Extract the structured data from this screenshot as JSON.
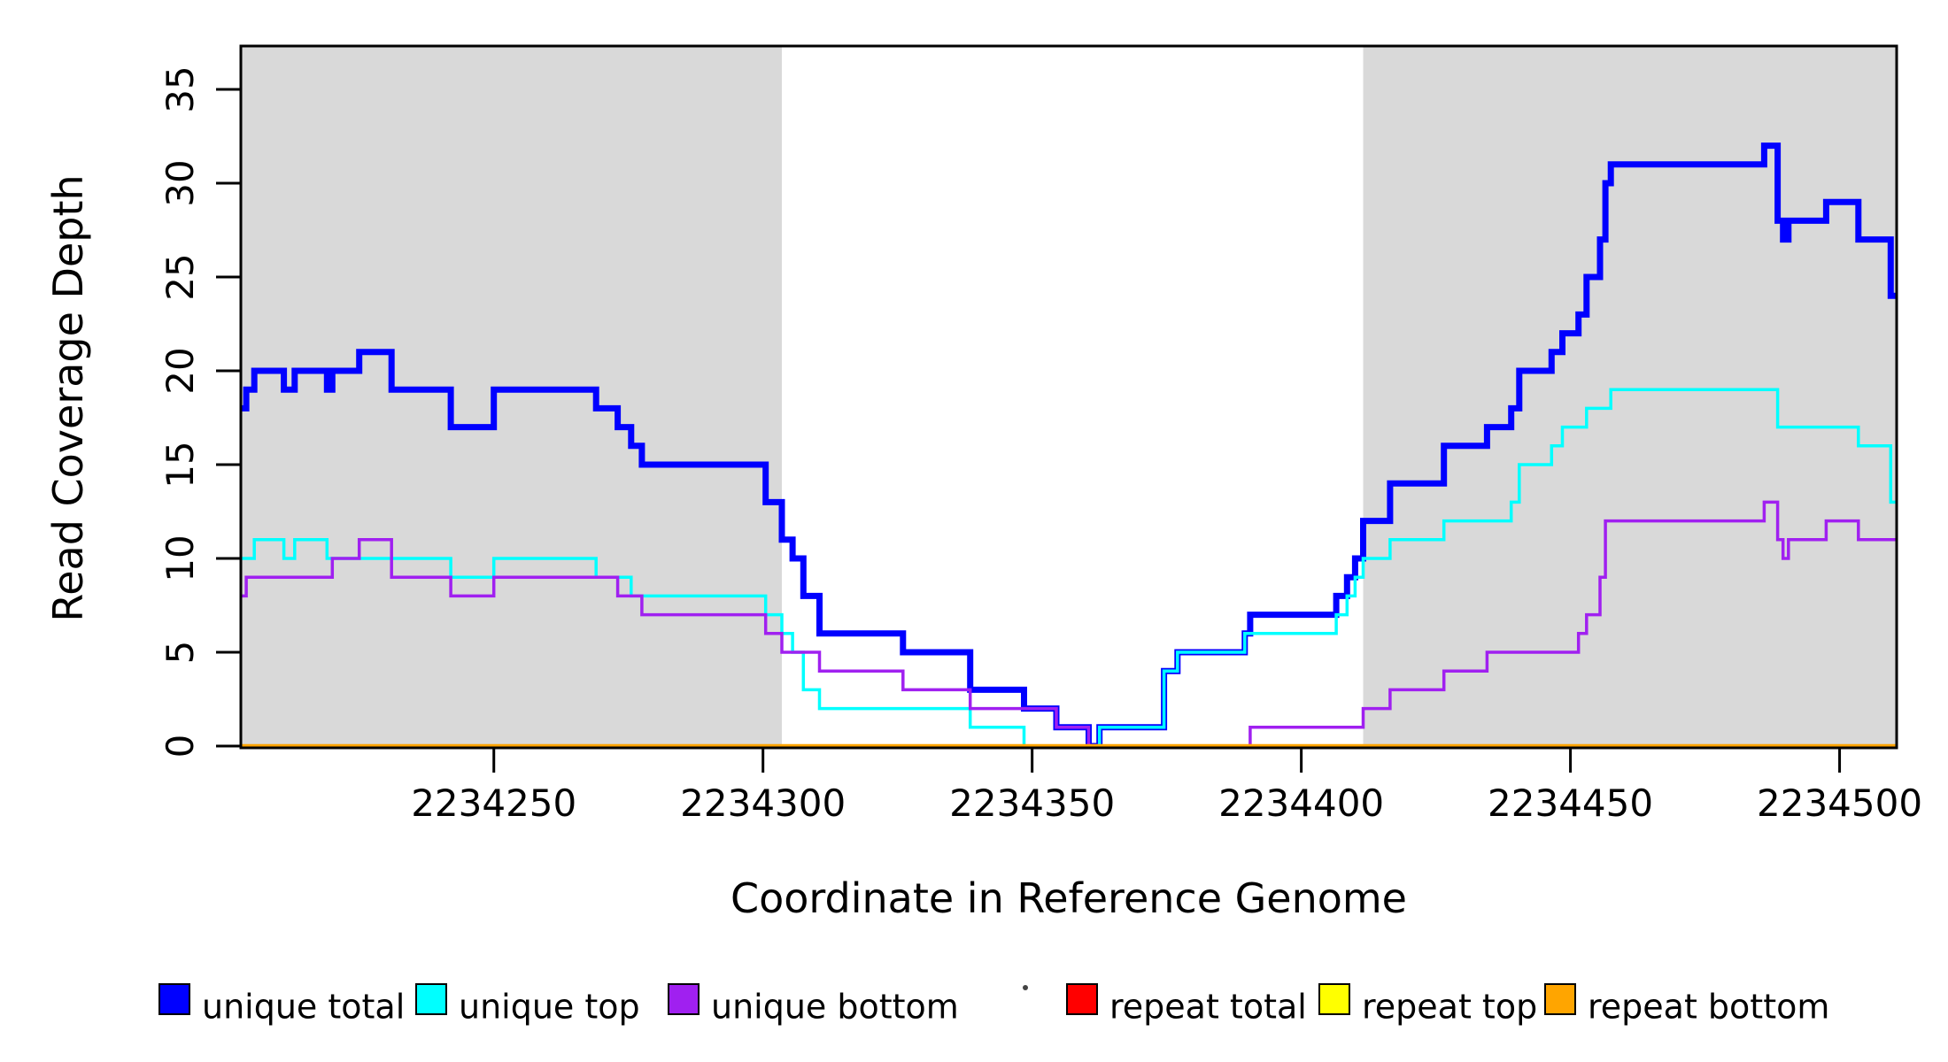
{
  "figure": {
    "x_axis_title": "Coordinate in Reference Genome",
    "y_axis_title": "Read Coverage Depth"
  },
  "colors": {
    "shade": "#D9D9D9",
    "frame": "#000000",
    "unique_total": "#0000FF",
    "unique_top": "#00FFFF",
    "unique_bottom": "#A020F0",
    "repeat_total": "#FF0000",
    "repeat_top": "#FFFF00",
    "repeat_bottom": "#FFA500"
  },
  "chart_data": {
    "type": "line",
    "step": true,
    "title": "",
    "xlabel": "Coordinate in Reference Genome",
    "ylabel": "Read Coverage Depth",
    "xlim": [
      2234203,
      2234510.6
    ],
    "ylim": [
      0,
      37.3
    ],
    "x_ticks": [
      2234250,
      2234300,
      2234350,
      2234400,
      2234450,
      2234500
    ],
    "y_ticks": [
      0,
      5,
      10,
      15,
      20,
      25,
      30,
      35
    ],
    "grid": false,
    "legend_position": "bottom",
    "shaded_regions": [
      {
        "from": 2234203,
        "to": 2234303.5
      },
      {
        "from": 2234411.5,
        "to": 2234510.6
      }
    ],
    "series": [
      {
        "name": "unique total",
        "color": "#0000FF",
        "width": 7,
        "steps": [
          [
            2234203,
            18
          ],
          [
            2234204,
            19
          ],
          [
            2234205.5,
            20
          ],
          [
            2234211,
            19
          ],
          [
            2234213,
            20
          ],
          [
            2234219,
            19
          ],
          [
            2234220,
            20
          ],
          [
            2234225,
            21
          ],
          [
            2234231,
            19
          ],
          [
            2234242,
            17
          ],
          [
            2234250,
            19
          ],
          [
            2234269,
            18
          ],
          [
            2234273,
            17
          ],
          [
            2234275.5,
            16
          ],
          [
            2234277.5,
            15
          ],
          [
            2234300.5,
            13
          ],
          [
            2234303.5,
            11
          ],
          [
            2234305.5,
            10
          ],
          [
            2234307.5,
            8
          ],
          [
            2234310.5,
            6
          ],
          [
            2234326,
            5
          ],
          [
            2234338.5,
            3
          ],
          [
            2234348.5,
            2
          ],
          [
            2234354.5,
            1
          ],
          [
            2234360.5,
            0
          ],
          [
            2234362.5,
            1
          ],
          [
            2234374.5,
            4
          ],
          [
            2234377,
            5
          ],
          [
            2234389.5,
            6
          ],
          [
            2234390.5,
            7
          ],
          [
            2234406.5,
            8
          ],
          [
            2234408.5,
            9
          ],
          [
            2234410,
            10
          ],
          [
            2234411.5,
            12
          ],
          [
            2234416.5,
            14
          ],
          [
            2234426.5,
            16
          ],
          [
            2234434.5,
            17
          ],
          [
            2234439,
            18
          ],
          [
            2234440.5,
            20
          ],
          [
            2234446.5,
            21
          ],
          [
            2234448.5,
            22
          ],
          [
            2234451.5,
            23
          ],
          [
            2234453,
            25
          ],
          [
            2234455.5,
            27
          ],
          [
            2234456.5,
            30
          ],
          [
            2234457.5,
            31
          ],
          [
            2234486,
            32
          ],
          [
            2234488.5,
            28
          ],
          [
            2234489.5,
            27
          ],
          [
            2234490.5,
            28
          ],
          [
            2234497.5,
            29
          ],
          [
            2234503.5,
            27
          ],
          [
            2234509.5,
            24
          ]
        ]
      },
      {
        "name": "unique top",
        "color": "#00FFFF",
        "width": 3.5,
        "steps": [
          [
            2234203,
            10
          ],
          [
            2234205.5,
            11
          ],
          [
            2234211,
            10
          ],
          [
            2234213,
            11
          ],
          [
            2234219,
            10
          ],
          [
            2234242,
            9
          ],
          [
            2234250,
            10
          ],
          [
            2234269,
            9
          ],
          [
            2234275.5,
            8
          ],
          [
            2234300.5,
            7
          ],
          [
            2234303.5,
            6
          ],
          [
            2234305.5,
            5
          ],
          [
            2234307.5,
            3
          ],
          [
            2234310.5,
            2
          ],
          [
            2234338.5,
            1
          ],
          [
            2234348.5,
            0
          ],
          [
            2234362.5,
            1
          ],
          [
            2234374.5,
            4
          ],
          [
            2234377,
            5
          ],
          [
            2234389.5,
            6
          ],
          [
            2234406.5,
            7
          ],
          [
            2234408.5,
            8
          ],
          [
            2234410,
            9
          ],
          [
            2234411.5,
            10
          ],
          [
            2234416.5,
            11
          ],
          [
            2234426.5,
            12
          ],
          [
            2234439,
            13
          ],
          [
            2234440.5,
            15
          ],
          [
            2234446.5,
            16
          ],
          [
            2234448.5,
            17
          ],
          [
            2234453,
            18
          ],
          [
            2234457.5,
            19
          ],
          [
            2234488.5,
            17
          ],
          [
            2234503.5,
            16
          ],
          [
            2234509.5,
            13
          ]
        ]
      },
      {
        "name": "unique bottom",
        "color": "#A020F0",
        "width": 3.5,
        "steps": [
          [
            2234203,
            8
          ],
          [
            2234204,
            9
          ],
          [
            2234220,
            10
          ],
          [
            2234225,
            11
          ],
          [
            2234231,
            9
          ],
          [
            2234242,
            8
          ],
          [
            2234250,
            9
          ],
          [
            2234273,
            8
          ],
          [
            2234277.5,
            7
          ],
          [
            2234300.5,
            6
          ],
          [
            2234303.5,
            5
          ],
          [
            2234310.5,
            4
          ],
          [
            2234326,
            3
          ],
          [
            2234338.5,
            2
          ],
          [
            2234354.5,
            1
          ],
          [
            2234360.5,
            0
          ],
          [
            2234390.5,
            1
          ],
          [
            2234411.5,
            2
          ],
          [
            2234416.5,
            3
          ],
          [
            2234426.5,
            4
          ],
          [
            2234434.5,
            5
          ],
          [
            2234451.5,
            6
          ],
          [
            2234453,
            7
          ],
          [
            2234455.5,
            9
          ],
          [
            2234456.5,
            12
          ],
          [
            2234486,
            13
          ],
          [
            2234488.5,
            11
          ],
          [
            2234489.5,
            10
          ],
          [
            2234490.5,
            11
          ],
          [
            2234497.5,
            12
          ],
          [
            2234503.5,
            11
          ]
        ]
      },
      {
        "name": "repeat total",
        "color": "#FF0000",
        "width": 3.5,
        "steps": [
          [
            2234203,
            0
          ]
        ]
      },
      {
        "name": "repeat top",
        "color": "#FFFF00",
        "width": 3.5,
        "steps": [
          [
            2234203,
            0
          ]
        ]
      },
      {
        "name": "repeat bottom",
        "color": "#FFA500",
        "width": 4.5,
        "steps": [
          [
            2234203,
            0
          ]
        ]
      }
    ]
  }
}
